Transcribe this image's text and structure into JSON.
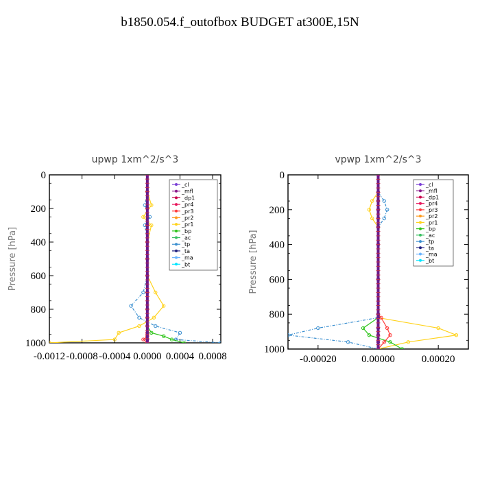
{
  "title": "b1850.054.f_outofbox  BUDGET at300E,15N",
  "legend_labels": [
    "_cl",
    "_mfl",
    "_dp1",
    "_pr4",
    "_pr3",
    "_pr2",
    "_pr1",
    "_bp",
    "_ac",
    "_tp",
    "_ta",
    "_ma",
    "_bt"
  ],
  "legend_colors": [
    "#7b3fd6",
    "#8b1a8b",
    "#c8004a",
    "#e8155a",
    "#ff3b3b",
    "#ff9a1a",
    "#ffd21a",
    "#2ec41a",
    "#38c060",
    "#3a8fd0",
    "#202080",
    "#6ab4ff",
    "#00e5ff"
  ],
  "chart_data": [
    {
      "type": "line",
      "title": "upwp  1xm^2/s^3",
      "ylabel": "Pressure  [hPa]",
      "xlim": [
        -0.0012,
        0.0009
      ],
      "ylim": [
        1000,
        0
      ],
      "y_reversed": true,
      "xticks": [
        -0.0012,
        -0.0008,
        -0.0004,
        0.0,
        0.0004,
        0.0008
      ],
      "xtick_labels": [
        "-0.0012",
        "-0.0008",
        "-0.0004",
        "0.0000",
        "0.0004",
        "0.0008"
      ],
      "yticks": [
        0,
        200,
        400,
        600,
        800,
        1000
      ],
      "ytick_labels": [
        "0",
        "200",
        "400",
        "600",
        "800",
        "1000"
      ],
      "legend": "top-right",
      "series": [
        {
          "name": "_pr1",
          "color": "#ffd21a",
          "x": [
            0,
            0,
            5e-05,
            -5e-05,
            5e-05,
            0,
            0,
            0,
            0.0001,
            0.0002,
            8e-05,
            -0.0001,
            -0.00035,
            -0.0004,
            -0.0012
          ],
          "y": [
            0,
            100,
            180,
            250,
            300,
            400,
            500,
            600,
            700,
            780,
            850,
            900,
            940,
            980,
            1000
          ]
        },
        {
          "name": "_tp",
          "color": "#3a8fd0",
          "x": [
            0,
            0,
            -3e-05,
            3e-05,
            -3e-05,
            0,
            0,
            0,
            -5e-05,
            -0.0002,
            -0.0001,
            0.0001,
            0.0004,
            0.00035,
            0.0009
          ],
          "y": [
            0,
            100,
            180,
            250,
            300,
            400,
            500,
            600,
            700,
            780,
            850,
            900,
            940,
            980,
            1000
          ]
        },
        {
          "name": "_bp",
          "color": "#2ec41a",
          "x": [
            0,
            0,
            0,
            0,
            0,
            0,
            0,
            0,
            0,
            0,
            0,
            5e-05,
            0.0002,
            0.0003,
            0.00045
          ],
          "y": [
            0,
            100,
            200,
            300,
            400,
            500,
            600,
            700,
            800,
            850,
            900,
            940,
            960,
            980,
            1000
          ]
        },
        {
          "name": "_mfl",
          "color": "#8b1a8b",
          "x": [
            0,
            0,
            0,
            0,
            0,
            0,
            0,
            0,
            0,
            0,
            0,
            0,
            0,
            0,
            0
          ],
          "y": [
            0,
            100,
            200,
            300,
            400,
            500,
            600,
            700,
            800,
            850,
            900,
            940,
            960,
            980,
            1000
          ]
        },
        {
          "name": "_pr3",
          "color": "#ff3b3b",
          "x": [
            0,
            0,
            0,
            0,
            0,
            0,
            0,
            0,
            0,
            0,
            0,
            0,
            0,
            -5e-05,
            0
          ],
          "y": [
            0,
            100,
            200,
            300,
            400,
            500,
            600,
            700,
            800,
            850,
            900,
            940,
            960,
            980,
            1000
          ]
        }
      ]
    },
    {
      "type": "line",
      "title": "vpwp  1xm^2/s^3",
      "ylabel": "Pressure  [hPa]",
      "xlim": [
        -0.0003,
        0.0003
      ],
      "ylim": [
        1000,
        0
      ],
      "y_reversed": true,
      "xticks": [
        -0.0002,
        0.0,
        0.0002
      ],
      "xtick_labels": [
        "-0.00020",
        "0.00000",
        "0.00020"
      ],
      "yticks": [
        0,
        200,
        400,
        600,
        800,
        1000
      ],
      "ytick_labels": [
        "0",
        "200",
        "400",
        "600",
        "800",
        "1000"
      ],
      "legend": "top-right",
      "series": [
        {
          "name": "_pr1",
          "color": "#ffd21a",
          "x": [
            0,
            0,
            -2e-05,
            -3e-05,
            -2e-05,
            0,
            0,
            0,
            0,
            0,
            0.0002,
            0.00026,
            0.0001,
            0
          ],
          "y": [
            0,
            100,
            150,
            200,
            250,
            300,
            400,
            600,
            800,
            820,
            880,
            920,
            960,
            1000
          ]
        },
        {
          "name": "_tp",
          "color": "#3a8fd0",
          "x": [
            0,
            0,
            2e-05,
            3e-05,
            2e-05,
            0,
            0,
            0,
            0,
            0,
            -0.0002,
            -0.0003,
            -0.0001,
            0
          ],
          "y": [
            0,
            100,
            150,
            200,
            250,
            300,
            400,
            600,
            800,
            820,
            880,
            920,
            960,
            1000
          ]
        },
        {
          "name": "_bp",
          "color": "#2ec41a",
          "x": [
            0,
            0,
            0,
            0,
            0,
            0,
            0,
            0,
            0,
            0,
            -5e-05,
            -3e-05,
            4e-05,
            8e-05
          ],
          "y": [
            0,
            100,
            150,
            200,
            250,
            300,
            400,
            600,
            800,
            820,
            880,
            920,
            960,
            1000
          ]
        },
        {
          "name": "_pr3",
          "color": "#ff3b3b",
          "x": [
            0,
            0,
            0,
            0,
            0,
            0,
            0,
            0,
            0,
            1e-05,
            3e-05,
            4e-05,
            2e-05,
            0
          ],
          "y": [
            0,
            100,
            150,
            200,
            250,
            300,
            400,
            600,
            800,
            820,
            880,
            920,
            960,
            1000
          ]
        },
        {
          "name": "_mfl",
          "color": "#8b1a8b",
          "x": [
            0,
            0,
            0,
            0,
            0,
            0,
            0,
            0,
            0,
            0,
            0,
            0,
            0,
            0
          ],
          "y": [
            0,
            100,
            150,
            200,
            250,
            300,
            400,
            600,
            800,
            820,
            880,
            920,
            960,
            1000
          ]
        }
      ]
    }
  ]
}
